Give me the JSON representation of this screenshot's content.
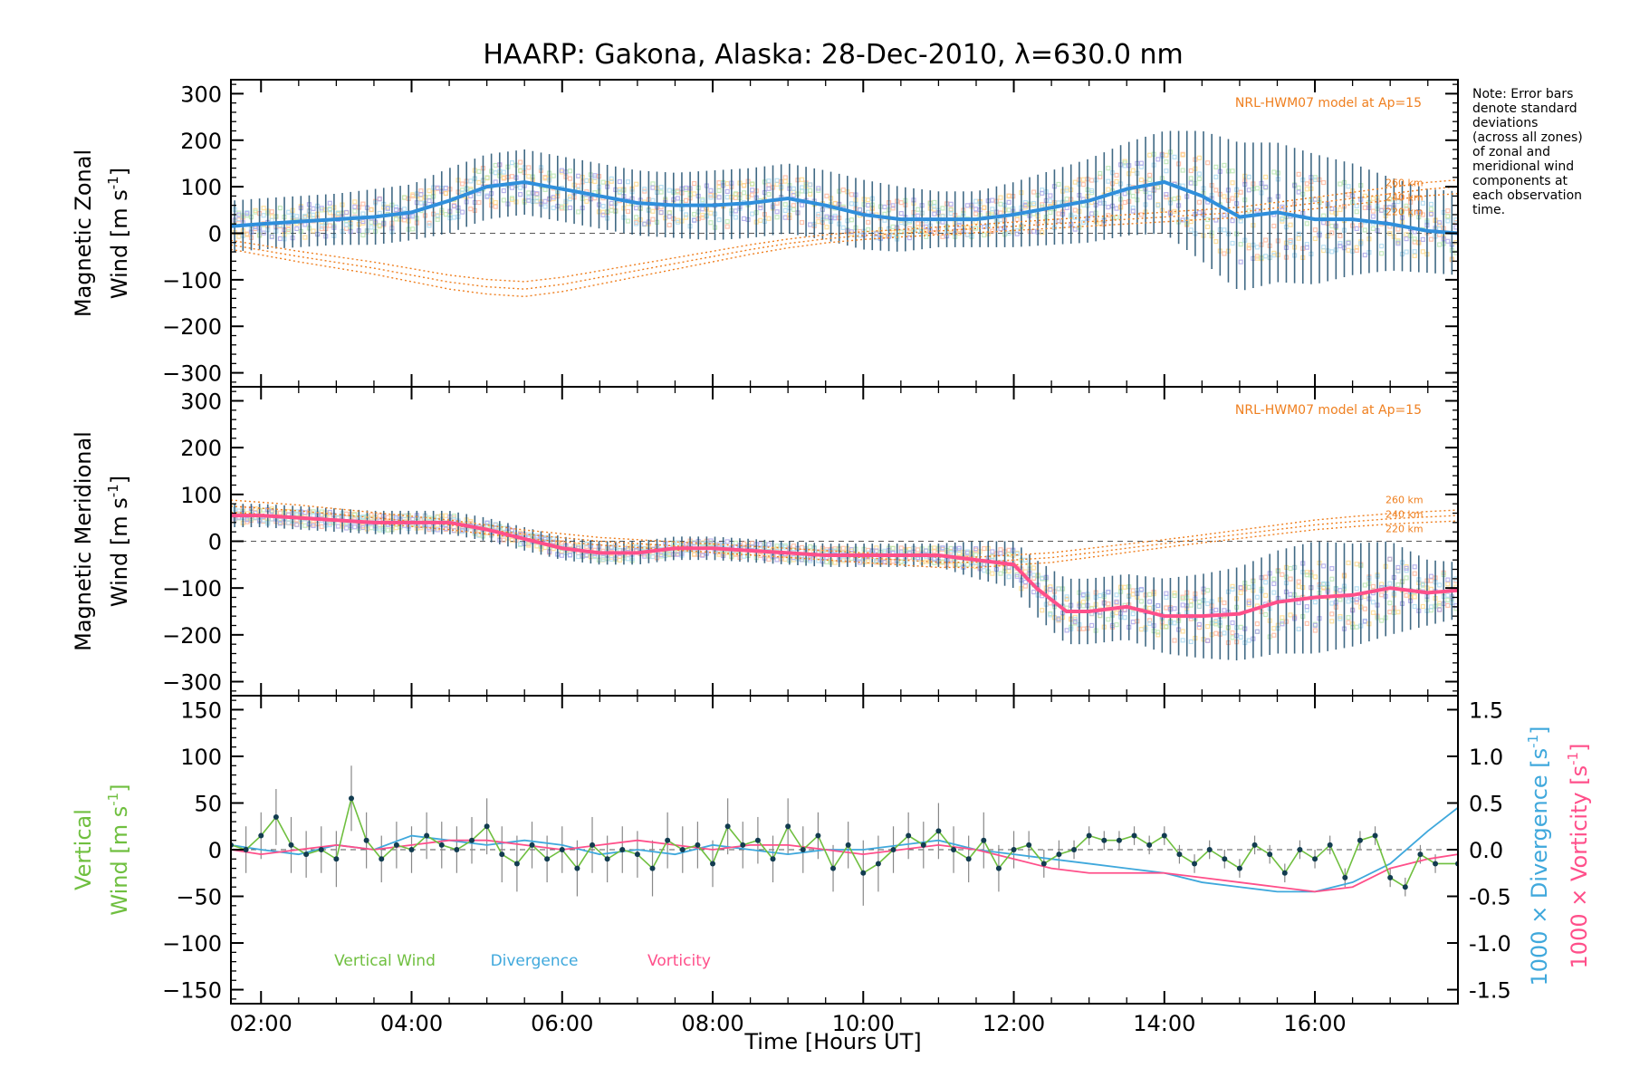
{
  "figure": {
    "title": "HAARP: Gakona,  Alaska: 28-Dec-2010, λ=630.0 nm",
    "xlabel": "Time [Hours UT]",
    "x_ticks": [
      "02:00",
      "04:00",
      "06:00",
      "08:00",
      "10:00",
      "12:00",
      "14:00",
      "16:00"
    ],
    "note": [
      "Note: Error bars",
      "denote standard",
      "deviations",
      "(across all zones)",
      "of zonal and",
      "meridional wind",
      "components at",
      "each observation",
      "time."
    ],
    "colors": {
      "zonal_mean": "#2f8fdc",
      "meridional_mean": "#ff4f8a",
      "error_bar": "#1f4f6f",
      "model": "#ef7f1f",
      "zone_points": "#a9a3e8",
      "vertical": "#6fbf3f",
      "divergence": "#3fa8dc",
      "vorticity": "#ff4f8a"
    }
  },
  "chart_data": [
    {
      "type": "line",
      "panel": "zonal",
      "ylabel_line1": "Magnetic Zonal",
      "ylabel_line2": "Wind [m s",
      "ylabel_sup": "-1",
      "ylabel_close": "]",
      "ylim": [
        -330,
        330
      ],
      "y_ticks": [
        300,
        200,
        100,
        0,
        -100,
        -200,
        -300
      ],
      "xlim_hours": [
        1.6,
        17.9
      ],
      "model_label": "NRL-HWM07 model at Ap=15",
      "model_altitudes": [
        "260 km",
        "240 km",
        "220 km"
      ],
      "series": [
        {
          "role": "mean",
          "x": [
            1.6,
            2.0,
            2.5,
            3.0,
            3.5,
            4.0,
            4.5,
            5.0,
            5.5,
            6.0,
            6.5,
            7.0,
            7.5,
            8.0,
            8.5,
            9.0,
            9.5,
            10.0,
            10.5,
            11.0,
            11.5,
            12.0,
            12.5,
            13.0,
            13.5,
            14.0,
            14.5,
            15.0,
            15.5,
            16.0,
            16.5,
            17.0,
            17.5,
            17.9
          ],
          "values": [
            15,
            20,
            25,
            30,
            35,
            45,
            70,
            100,
            110,
            95,
            80,
            65,
            60,
            60,
            65,
            75,
            60,
            40,
            30,
            30,
            30,
            40,
            55,
            70,
            95,
            110,
            80,
            35,
            45,
            30,
            30,
            20,
            5,
            0
          ],
          "sd": [
            55,
            55,
            55,
            55,
            60,
            60,
            70,
            70,
            70,
            70,
            70,
            70,
            70,
            75,
            75,
            75,
            75,
            75,
            70,
            60,
            60,
            70,
            80,
            90,
            100,
            110,
            140,
            160,
            150,
            140,
            120,
            100,
            90,
            90
          ]
        },
        {
          "role": "model",
          "x": [
            1.6,
            2.5,
            3.5,
            4.5,
            5.0,
            5.5,
            6.0,
            6.5,
            7.0,
            7.5,
            8.0,
            8.5,
            9.0,
            9.5,
            10.0,
            10.5,
            11.0,
            11.5,
            12.0,
            12.5,
            13.0,
            13.5,
            14.0,
            14.5,
            15.0,
            15.5,
            16.0,
            16.5,
            17.0,
            17.5,
            17.9
          ],
          "values": [
            -25,
            -50,
            -75,
            -105,
            -115,
            -120,
            -110,
            -95,
            -80,
            -65,
            -50,
            -35,
            -22,
            -12,
            -5,
            0,
            5,
            10,
            15,
            20,
            25,
            30,
            35,
            40,
            45,
            55,
            65,
            75,
            85,
            95,
            100
          ]
        }
      ]
    },
    {
      "type": "line",
      "panel": "meridional",
      "ylabel_line1": "Magnetic Meridional",
      "ylabel_line2": "Wind [m s",
      "ylabel_sup": "-1",
      "ylabel_close": "]",
      "ylim": [
        -330,
        330
      ],
      "y_ticks": [
        300,
        200,
        100,
        0,
        -100,
        -200,
        -300
      ],
      "xlim_hours": [
        1.6,
        17.9
      ],
      "model_label": "NRL-HWM07 model at Ap=15",
      "model_altitudes": [
        "260 km",
        "240 km",
        "220 km"
      ],
      "series": [
        {
          "role": "mean",
          "x": [
            1.6,
            2.0,
            2.5,
            3.0,
            3.5,
            4.0,
            4.5,
            5.0,
            5.5,
            6.0,
            6.5,
            7.0,
            7.5,
            8.0,
            8.5,
            9.0,
            9.5,
            10.0,
            10.5,
            11.0,
            11.5,
            12.0,
            12.3,
            12.7,
            13.0,
            13.5,
            14.0,
            14.5,
            15.0,
            15.5,
            16.0,
            16.5,
            17.0,
            17.5,
            17.9
          ],
          "values": [
            55,
            55,
            50,
            45,
            40,
            40,
            40,
            25,
            5,
            -15,
            -25,
            -25,
            -15,
            -15,
            -20,
            -25,
            -30,
            -30,
            -30,
            -30,
            -40,
            -50,
            -100,
            -150,
            -150,
            -140,
            -160,
            -160,
            -155,
            -130,
            -120,
            -115,
            -100,
            -110,
            -105
          ],
          "sd": [
            25,
            25,
            25,
            25,
            25,
            25,
            25,
            25,
            25,
            25,
            25,
            25,
            25,
            25,
            25,
            25,
            25,
            25,
            25,
            25,
            40,
            50,
            60,
            70,
            70,
            70,
            80,
            90,
            100,
            110,
            120,
            110,
            100,
            70,
            60
          ]
        },
        {
          "role": "model",
          "x": [
            1.6,
            2.5,
            3.5,
            4.5,
            5.5,
            6.5,
            7.5,
            8.5,
            9.5,
            10.5,
            11.0,
            11.5,
            12.0,
            12.5,
            13.0,
            13.5,
            14.0,
            14.5,
            15.0,
            15.5,
            16.0,
            16.5,
            17.0,
            17.5,
            17.9
          ],
          "values": [
            75,
            65,
            50,
            35,
            15,
            0,
            -10,
            -20,
            -30,
            -40,
            -45,
            -45,
            -40,
            -35,
            -25,
            -15,
            -5,
            5,
            15,
            25,
            35,
            42,
            48,
            52,
            55
          ]
        }
      ]
    },
    {
      "type": "line",
      "panel": "vertical",
      "ylabel_line1": "Vertical",
      "ylabel_line2": "Wind [m s",
      "ylabel_sup": "-1",
      "ylabel_close": "]",
      "ylim": [
        -165,
        165
      ],
      "y_ticks": [
        150,
        100,
        50,
        0,
        -50,
        -100,
        -150
      ],
      "y2lim": [
        -1.65,
        1.65
      ],
      "y2_ticks": [
        "1.5",
        "1.0",
        "0.5",
        "0.0",
        "-0.5",
        "-1.0",
        "-1.5"
      ],
      "y2label_div": "1000 × Divergence [s",
      "y2label_vort": "1000 × Vorticity [s",
      "y2label_sup": "-1",
      "y2label_close": "]",
      "legend": [
        "Vertical Wind",
        "Divergence",
        "Vorticity"
      ],
      "xlim_hours": [
        1.6,
        17.9
      ],
      "series": [
        {
          "name": "Vertical Wind",
          "axis": "left",
          "x": [
            1.6,
            1.8,
            2.0,
            2.2,
            2.4,
            2.6,
            2.8,
            3.0,
            3.2,
            3.4,
            3.6,
            3.8,
            4.0,
            4.2,
            4.4,
            4.6,
            4.8,
            5.0,
            5.2,
            5.4,
            5.6,
            5.8,
            6.0,
            6.2,
            6.4,
            6.6,
            6.8,
            7.0,
            7.2,
            7.4,
            7.6,
            7.8,
            8.0,
            8.2,
            8.4,
            8.6,
            8.8,
            9.0,
            9.2,
            9.4,
            9.6,
            9.8,
            10.0,
            10.2,
            10.4,
            10.6,
            10.8,
            11.0,
            11.2,
            11.4,
            11.6,
            11.8,
            12.0,
            12.2,
            12.4,
            12.6,
            12.8,
            13.0,
            13.2,
            13.4,
            13.6,
            13.8,
            14.0,
            14.2,
            14.4,
            14.6,
            14.8,
            15.0,
            15.2,
            15.4,
            15.6,
            15.8,
            16.0,
            16.2,
            16.4,
            16.6,
            16.8,
            17.0,
            17.2,
            17.4,
            17.6,
            17.9
          ],
          "values": [
            5,
            0,
            15,
            35,
            5,
            -5,
            0,
            -10,
            55,
            10,
            -10,
            5,
            0,
            15,
            5,
            0,
            10,
            25,
            -5,
            -15,
            5,
            -10,
            0,
            -20,
            5,
            -10,
            0,
            -5,
            -20,
            10,
            0,
            5,
            -15,
            25,
            5,
            10,
            -10,
            25,
            0,
            15,
            -20,
            5,
            -25,
            -15,
            0,
            15,
            5,
            20,
            0,
            -10,
            10,
            -20,
            0,
            5,
            -15,
            -5,
            0,
            15,
            10,
            10,
            15,
            5,
            15,
            -5,
            -15,
            0,
            -10,
            -20,
            5,
            -5,
            -25,
            0,
            -10,
            5,
            -30,
            10,
            15,
            -30,
            -40,
            -5,
            -15,
            -15
          ],
          "err": [
            20,
            25,
            25,
            30,
            30,
            25,
            25,
            30,
            35,
            30,
            25,
            25,
            25,
            25,
            25,
            25,
            25,
            30,
            30,
            30,
            25,
            25,
            25,
            30,
            30,
            25,
            25,
            25,
            30,
            30,
            25,
            25,
            25,
            30,
            25,
            25,
            25,
            30,
            25,
            25,
            25,
            25,
            35,
            30,
            25,
            25,
            25,
            30,
            25,
            25,
            30,
            25,
            20,
            15,
            15,
            15,
            10,
            10,
            10,
            10,
            10,
            10,
            10,
            10,
            10,
            10,
            10,
            10,
            10,
            10,
            10,
            10,
            10,
            10,
            10,
            10,
            10,
            10,
            10,
            10,
            10,
            10
          ]
        },
        {
          "name": "Divergence",
          "axis": "right",
          "x": [
            1.6,
            2.0,
            2.5,
            3.0,
            3.5,
            4.0,
            4.5,
            5.0,
            5.5,
            6.0,
            6.5,
            7.0,
            7.5,
            8.0,
            8.5,
            9.0,
            9.5,
            10.0,
            10.5,
            11.0,
            11.5,
            12.0,
            12.5,
            13.0,
            13.5,
            14.0,
            14.5,
            15.0,
            15.5,
            16.0,
            16.5,
            17.0,
            17.5,
            17.9
          ],
          "values": [
            0.05,
            0.0,
            -0.05,
            0.05,
            0.0,
            0.15,
            0.1,
            0.05,
            0.1,
            0.05,
            -0.05,
            0.0,
            -0.05,
            0.05,
            0.0,
            -0.05,
            0.0,
            0.0,
            0.05,
            0.1,
            0.0,
            -0.05,
            -0.1,
            -0.15,
            -0.2,
            -0.25,
            -0.35,
            -0.4,
            -0.45,
            -0.45,
            -0.35,
            -0.15,
            0.2,
            0.45
          ]
        },
        {
          "name": "Vorticity",
          "axis": "right",
          "x": [
            1.6,
            2.0,
            2.5,
            3.0,
            3.5,
            4.0,
            4.5,
            5.0,
            5.5,
            6.0,
            6.5,
            7.0,
            7.5,
            8.0,
            8.5,
            9.0,
            9.5,
            10.0,
            10.5,
            11.0,
            11.5,
            12.0,
            12.5,
            13.0,
            13.5,
            14.0,
            14.5,
            15.0,
            15.5,
            16.0,
            16.5,
            17.0,
            17.5,
            17.9
          ],
          "values": [
            0.0,
            -0.05,
            0.0,
            0.05,
            0.0,
            0.05,
            0.1,
            0.1,
            0.05,
            0.0,
            0.05,
            0.1,
            0.05,
            0.0,
            0.05,
            0.05,
            0.0,
            -0.05,
            0.0,
            0.05,
            0.0,
            -0.1,
            -0.2,
            -0.25,
            -0.25,
            -0.25,
            -0.3,
            -0.35,
            -0.4,
            -0.45,
            -0.4,
            -0.2,
            -0.1,
            -0.05
          ]
        }
      ]
    }
  ]
}
